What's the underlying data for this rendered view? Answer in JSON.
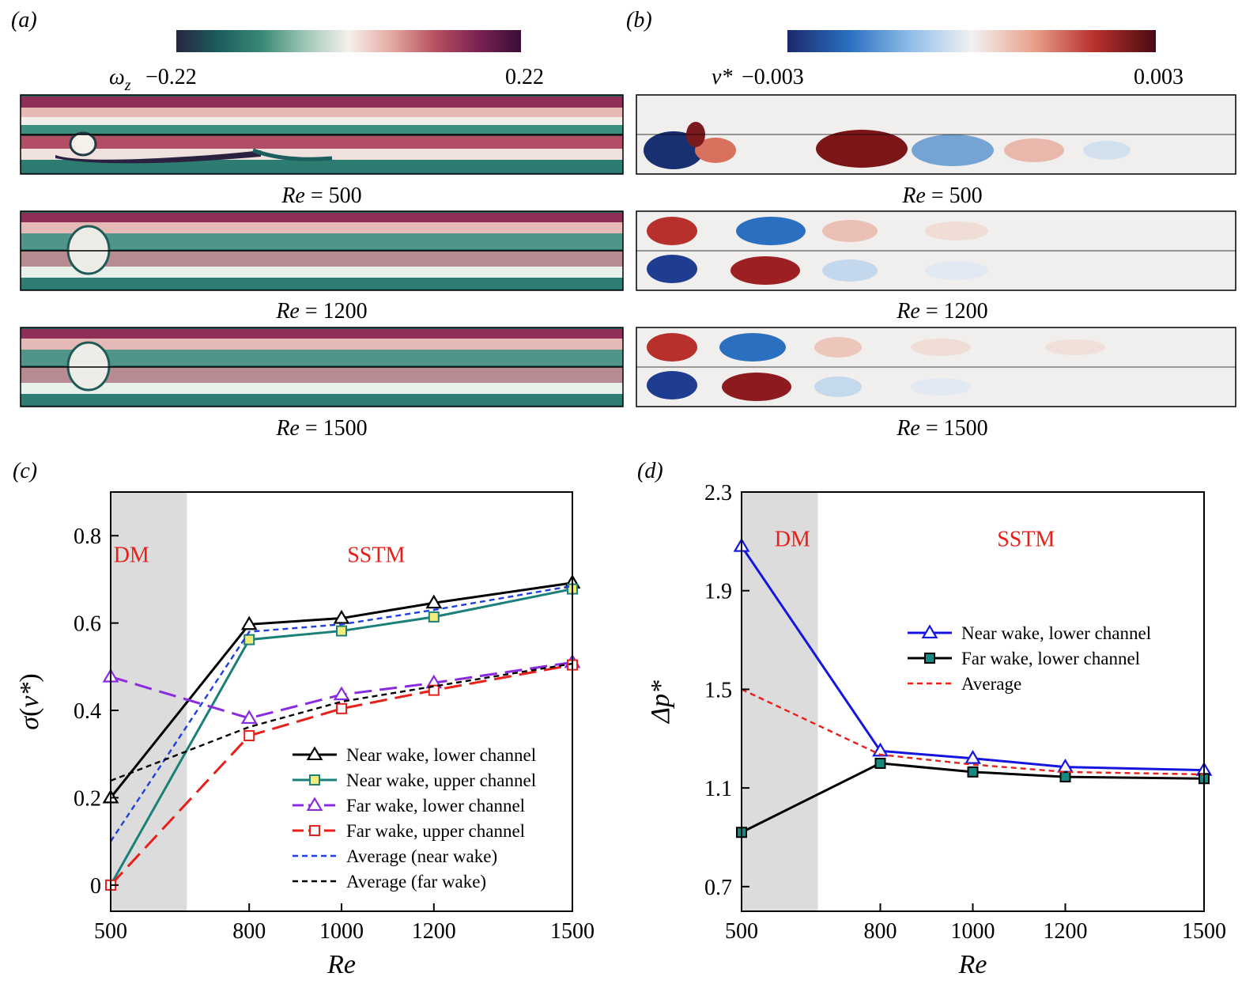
{
  "panels": {
    "a": {
      "label": "(a)",
      "cbar_symbol": "ω",
      "cbar_symbol_sub": "z",
      "cbar_min_label": "−0.22",
      "cbar_max_label": "0.22",
      "cbar_colors": [
        "#27263f",
        "#1c5e5e",
        "#3a8a78",
        "#9fc7b5",
        "#f6f1ec",
        "#e3a9a0",
        "#b8505f",
        "#7a2352",
        "#3a0d37"
      ],
      "fields": [
        {
          "re_label": "Re",
          "re_value": "= 500"
        },
        {
          "re_label": "Re",
          "re_value": "= 1200"
        },
        {
          "re_label": "Re",
          "re_value": "= 1500"
        }
      ]
    },
    "b": {
      "label": "(b)",
      "cbar_symbol": "v*",
      "cbar_min_label": "−0.003",
      "cbar_max_label": "0.003",
      "cbar_colors": [
        "#1b2a6b",
        "#2a6fc0",
        "#8fbde8",
        "#f2f2f2",
        "#e8a28c",
        "#b8302c",
        "#4a0b12"
      ],
      "fields": [
        {
          "re_label": "Re",
          "re_value": "= 500"
        },
        {
          "re_label": "Re",
          "re_value": "= 1200"
        },
        {
          "re_label": "Re",
          "re_value": "= 1500"
        }
      ]
    }
  },
  "chart_data": [
    {
      "panel": "(c)",
      "type": "line",
      "xlabel": "Re",
      "ylabel_symbol": "σ",
      "ylabel_arg": "v*",
      "x_ticks": [
        500,
        800,
        1000,
        1200,
        1500
      ],
      "y_ticks": [
        "0",
        "0.2",
        "0.4",
        "0.6",
        "0.8"
      ],
      "y_tick_values": [
        0,
        0.2,
        0.4,
        0.6,
        0.8
      ],
      "xlim": [
        500,
        1500
      ],
      "ylim": [
        -0.06,
        0.9
      ],
      "shaded_region": {
        "x": [
          500,
          665
        ],
        "label": "DM",
        "label_x": 545,
        "label_y": 0.74
      },
      "annotations": [
        {
          "text": "SSTM",
          "x": 1075,
          "y": 0.74,
          "color": "#e8201a"
        }
      ],
      "series": [
        {
          "name": "Near wake, lower channel",
          "x": [
            500,
            800,
            1000,
            1200,
            1500
          ],
          "values": [
            0.2,
            0.597,
            0.611,
            0.646,
            0.692
          ],
          "color": "#000000",
          "dash": "",
          "marker": "triangle",
          "marker_fill": "#ffffff"
        },
        {
          "name": "Near wake, upper channel",
          "x": [
            500,
            800,
            1000,
            1200,
            1500
          ],
          "values": [
            0.0,
            0.562,
            0.582,
            0.614,
            0.678
          ],
          "color": "#1a8079",
          "dash": "",
          "marker": "square",
          "marker_fill": "#f4ec7a"
        },
        {
          "name": "Far wake, lower channel",
          "x": [
            500,
            800,
            1000,
            1200,
            1500
          ],
          "values": [
            0.477,
            0.382,
            0.436,
            0.463,
            0.51
          ],
          "color": "#8a2be2",
          "dash": "22,10",
          "marker": "triangle",
          "marker_fill": "#ffffff"
        },
        {
          "name": "Far wake, upper channel",
          "x": [
            500,
            800,
            1000,
            1200,
            1500
          ],
          "values": [
            0.0,
            0.342,
            0.404,
            0.446,
            0.504
          ],
          "color": "#e8201a",
          "dash": "22,10",
          "marker": "square",
          "marker_fill": "#ffffff"
        },
        {
          "name": "Average (near wake)",
          "x": [
            500,
            800,
            1000,
            1200,
            1500
          ],
          "values": [
            0.1,
            0.58,
            0.597,
            0.63,
            0.685
          ],
          "color": "#1f3fe0",
          "dash": "7,5",
          "marker": "none",
          "marker_fill": "none"
        },
        {
          "name": "Average (far wake)",
          "x": [
            500,
            800,
            1000,
            1200,
            1500
          ],
          "values": [
            0.239,
            0.362,
            0.42,
            0.455,
            0.507
          ],
          "color": "#000000",
          "dash": "7,5",
          "marker": "none",
          "marker_fill": "none"
        }
      ],
      "legend_position": "lower-right"
    },
    {
      "panel": "(d)",
      "type": "line",
      "xlabel": "Re",
      "ylabel_symbol": "Δp*",
      "x_ticks": [
        500,
        800,
        1000,
        1200,
        1500
      ],
      "y_ticks": [
        "0.7",
        "1.1",
        "1.5",
        "1.9",
        "2.3"
      ],
      "y_tick_values": [
        0.7,
        1.1,
        1.5,
        1.9,
        2.3
      ],
      "xlim": [
        500,
        1500
      ],
      "ylim": [
        0.6,
        2.3
      ],
      "shaded_region": {
        "x": [
          500,
          665
        ],
        "label": "DM",
        "label_x": 610,
        "label_y": 2.08
      },
      "annotations": [
        {
          "text": "SSTM",
          "x": 1115,
          "y": 2.08,
          "color": "#e8201a"
        }
      ],
      "series": [
        {
          "name": "Near wake, lower channel",
          "x": [
            500,
            800,
            1000,
            1200,
            1500
          ],
          "values": [
            2.08,
            1.25,
            1.22,
            1.185,
            1.172
          ],
          "color": "#1515e0",
          "dash": "",
          "marker": "triangle",
          "marker_fill": "#ffffff"
        },
        {
          "name": "Far wake, lower channel",
          "x": [
            500,
            800,
            1000,
            1200,
            1500
          ],
          "values": [
            0.92,
            1.2,
            1.165,
            1.145,
            1.138
          ],
          "color": "#000000",
          "dash": "",
          "marker": "square",
          "marker_fill": "#168a80"
        },
        {
          "name": "Average",
          "x": [
            500,
            800,
            1000,
            1200,
            1500
          ],
          "values": [
            1.5,
            1.235,
            1.195,
            1.165,
            1.155
          ],
          "color": "#e8201a",
          "dash": "7,5",
          "marker": "none",
          "marker_fill": "none"
        }
      ],
      "legend_position": "center-right"
    }
  ]
}
